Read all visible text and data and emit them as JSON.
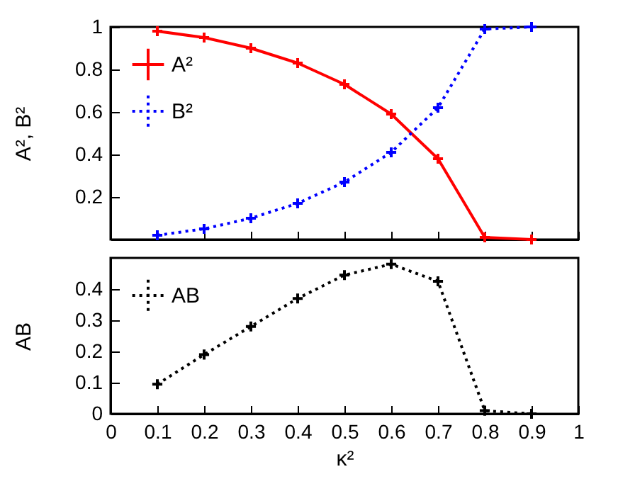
{
  "chart_data": [
    {
      "type": "line",
      "ylabel": "A², B²",
      "x": [
        0.1,
        0.2,
        0.3,
        0.4,
        0.5,
        0.6,
        0.7,
        0.8,
        0.9
      ],
      "xlim": [
        0,
        1
      ],
      "xticks": [
        0,
        0.1,
        0.2,
        0.3,
        0.4,
        0.5,
        0.6,
        0.7,
        0.8,
        0.9,
        1
      ],
      "ylim": [
        0,
        1
      ],
      "yticks": [
        0.2,
        0.4,
        0.6,
        0.8,
        1
      ],
      "tick_labels": "y",
      "legend": "top left",
      "series": [
        {
          "name": "A²",
          "color": "#ff0000",
          "marker": "cross",
          "line_style": "solid",
          "values": [
            0.98,
            0.95,
            0.9,
            0.83,
            0.73,
            0.59,
            0.38,
            0.01,
            0.0
          ]
        },
        {
          "name": "B²",
          "color": "#0000ff",
          "marker": "cross",
          "line_style": "dotted",
          "values": [
            0.02,
            0.05,
            0.1,
            0.17,
            0.27,
            0.41,
            0.62,
            0.99,
            1.0
          ]
        }
      ]
    },
    {
      "type": "line",
      "xlabel": "κ²",
      "ylabel": "AB",
      "x": [
        0.1,
        0.2,
        0.3,
        0.4,
        0.5,
        0.6,
        0.7,
        0.8,
        0.9
      ],
      "xlim": [
        0,
        1
      ],
      "xticks": [
        0,
        0.1,
        0.2,
        0.3,
        0.4,
        0.5,
        0.6,
        0.7,
        0.8,
        0.9,
        1
      ],
      "ylim": [
        0,
        0.5
      ],
      "yticks": [
        0,
        0.1,
        0.2,
        0.3,
        0.4
      ],
      "legend": "top left",
      "series": [
        {
          "name": "AB",
          "color": "#000000",
          "marker": "cross",
          "line_style": "dotted",
          "values": [
            0.095,
            0.19,
            0.28,
            0.37,
            0.445,
            0.48,
            0.425,
            0.01,
            0.0
          ]
        }
      ]
    }
  ]
}
